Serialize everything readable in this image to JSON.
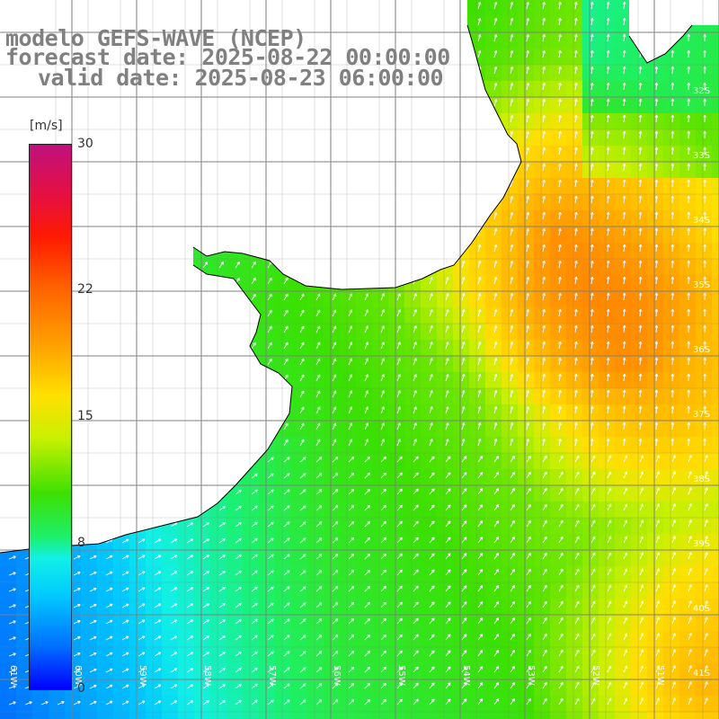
{
  "title": {
    "line1": "modelo GEFS-WAVE (NCEP)",
    "line2": "forecast date: 2025-08-22 00:00:00",
    "line3": "valid date: 2025-08-23 06:00:00"
  },
  "colorbar": {
    "units": "[m/s]",
    "ticks": [
      {
        "label": "30",
        "value": 30
      },
      {
        "label": "22",
        "value": 22
      },
      {
        "label": "15",
        "value": 15
      },
      {
        "label": "8",
        "value": 8
      },
      {
        "label": "0",
        "value": 0
      }
    ],
    "range": [
      0,
      30
    ],
    "colors": [
      "#c0107e",
      "#ff1a00",
      "#ff9c00",
      "#ffe000",
      "#3ce000",
      "#12f0e6",
      "#00c8ff",
      "#0000ff"
    ]
  },
  "lat_labels": [
    "32S",
    "33S",
    "34S",
    "35S",
    "36S",
    "37S",
    "38S",
    "39S",
    "40S",
    "41S"
  ],
  "lon_labels": [
    "61W",
    "60W",
    "59W",
    "58W",
    "57W",
    "56W",
    "55W",
    "54W",
    "53W",
    "52W",
    "51W"
  ],
  "map": {
    "land_color": "#ffffff",
    "grid_color": "#808080",
    "coast_color": "#000000",
    "arrow_color": "#ffffff"
  }
}
